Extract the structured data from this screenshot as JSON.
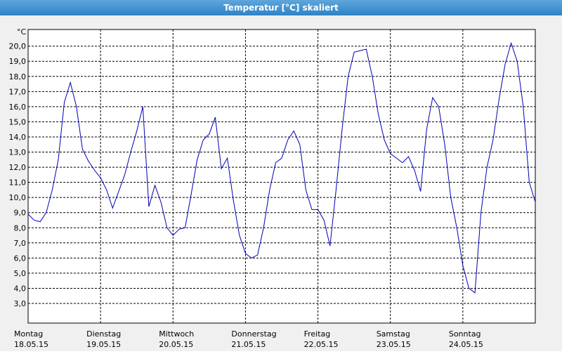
{
  "chart_data": {
    "type": "line",
    "title": "Temperatur [°C] skaliert",
    "y_unit": "°C",
    "x_labels": [
      [
        "Montag",
        "18.05.15"
      ],
      [
        "Dienstag",
        "19.05.15"
      ],
      [
        "Mittwoch",
        "20.05.15"
      ],
      [
        "Donnerstag",
        "21.05.15"
      ],
      [
        "Freitag",
        "22.05.15"
      ],
      [
        "Samstag",
        "23.05.15"
      ],
      [
        "Sonntag",
        "24.05.15"
      ]
    ],
    "series": [
      {
        "color": "#0000b4",
        "values": [
          8.9,
          8.5,
          8.4,
          9.0,
          10.5,
          12.5,
          16.3,
          17.6,
          16.0,
          13.2,
          12.4,
          11.8,
          11.3,
          10.5,
          9.3,
          10.4,
          11.5,
          13.0,
          14.4,
          16.0,
          9.4,
          10.8,
          9.7,
          8.0,
          7.5,
          7.9,
          8.0,
          10.2,
          12.5,
          13.8,
          14.2,
          15.3,
          11.9,
          12.6,
          9.8,
          7.5,
          6.3,
          6.0,
          6.2,
          8.0,
          10.5,
          12.3,
          12.6,
          13.8,
          14.4,
          13.5,
          10.5,
          9.2,
          9.2,
          8.5,
          6.8,
          10.5,
          14.5,
          18.0,
          19.6,
          19.7,
          19.8,
          18.0,
          15.5,
          13.8,
          12.9,
          12.6,
          12.3,
          12.7,
          11.8,
          10.4,
          14.5,
          16.6,
          16.0,
          13.5,
          10.0,
          8.0,
          5.5,
          4.0,
          3.7,
          9.0,
          12.0,
          13.8,
          16.5,
          18.8,
          20.2,
          19.0,
          16.0,
          11.0,
          9.7
        ]
      }
    ],
    "ylim": [
      1.7,
      21.1
    ],
    "yticks": [
      {
        "value": 3,
        "label": "3,0"
      },
      {
        "value": 4,
        "label": "4,0"
      },
      {
        "value": 5,
        "label": "5,0"
      },
      {
        "value": 6,
        "label": "6,0"
      },
      {
        "value": 7,
        "label": "7,0"
      },
      {
        "value": 8,
        "label": "8,0"
      },
      {
        "value": 9,
        "label": "9,0"
      },
      {
        "value": 10,
        "label": "10,0"
      },
      {
        "value": 11,
        "label": "11,0"
      },
      {
        "value": 12,
        "label": "12,0"
      },
      {
        "value": 13,
        "label": "13,0"
      },
      {
        "value": 14,
        "label": "14,0"
      },
      {
        "value": 15,
        "label": "15,0"
      },
      {
        "value": 16,
        "label": "16,0"
      },
      {
        "value": 17,
        "label": "17,0"
      },
      {
        "value": 18,
        "label": "18,0"
      },
      {
        "value": 19,
        "label": "19,0"
      },
      {
        "value": 20,
        "label": "20,0"
      }
    ],
    "grid": true
  }
}
